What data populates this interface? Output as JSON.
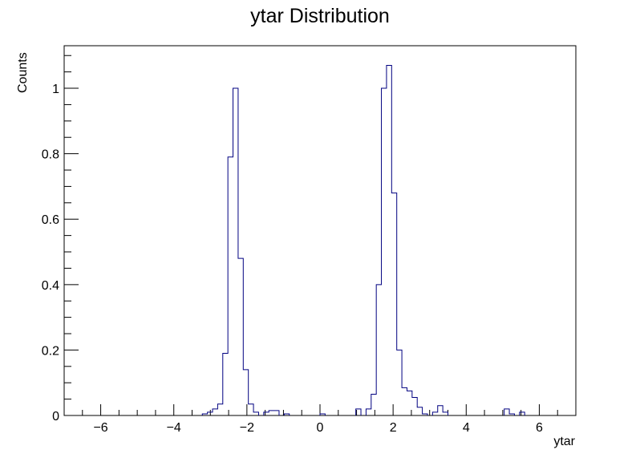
{
  "chart_data": {
    "type": "histogram",
    "title": "ytar Distribution",
    "xlabel": "ytar",
    "ylabel": "Counts",
    "xlim": [
      -7,
      7
    ],
    "ylim": [
      0,
      1.13
    ],
    "grid": false,
    "x_ticks": [
      -6,
      -4,
      -2,
      0,
      2,
      4,
      6
    ],
    "x_tick_labels": [
      "−6",
      "−4",
      "−2",
      "0",
      "2",
      "4",
      "6"
    ],
    "y_ticks": [
      0,
      0.2,
      0.4,
      0.6,
      0.8,
      1
    ],
    "y_tick_labels": [
      "0",
      "0.2",
      "0.4",
      "0.6",
      "0.8",
      "1"
    ],
    "line_color": "#000080",
    "bin_width": 0.14,
    "bins": [
      {
        "x0": -3.22,
        "y": 0.005
      },
      {
        "x0": -3.08,
        "y": 0.01
      },
      {
        "x0": -2.94,
        "y": 0.02
      },
      {
        "x0": -2.8,
        "y": 0.035
      },
      {
        "x0": -2.66,
        "y": 0.19
      },
      {
        "x0": -2.52,
        "y": 0.79
      },
      {
        "x0": -2.38,
        "y": 1.0
      },
      {
        "x0": -2.24,
        "y": 0.48
      },
      {
        "x0": -2.1,
        "y": 0.14
      },
      {
        "x0": -1.96,
        "y": 0.035
      },
      {
        "x0": -1.82,
        "y": 0.01
      },
      {
        "x0": -1.54,
        "y": 0.01
      },
      {
        "x0": -1.4,
        "y": 0.015
      },
      {
        "x0": -1.26,
        "y": 0.015
      },
      {
        "x0": -0.98,
        "y": 0.005
      },
      {
        "x0": 0.0,
        "y": 0.005
      },
      {
        "x0": 0.98,
        "y": 0.02
      },
      {
        "x0": 1.26,
        "y": 0.02
      },
      {
        "x0": 1.4,
        "y": 0.065
      },
      {
        "x0": 1.54,
        "y": 0.4
      },
      {
        "x0": 1.68,
        "y": 1.0
      },
      {
        "x0": 1.82,
        "y": 1.07
      },
      {
        "x0": 1.96,
        "y": 0.68
      },
      {
        "x0": 2.1,
        "y": 0.2
      },
      {
        "x0": 2.24,
        "y": 0.085
      },
      {
        "x0": 2.38,
        "y": 0.075
      },
      {
        "x0": 2.52,
        "y": 0.055
      },
      {
        "x0": 2.66,
        "y": 0.025
      },
      {
        "x0": 2.8,
        "y": 0.005
      },
      {
        "x0": 3.08,
        "y": 0.01
      },
      {
        "x0": 3.22,
        "y": 0.03
      },
      {
        "x0": 3.36,
        "y": 0.01
      },
      {
        "x0": 5.04,
        "y": 0.02
      },
      {
        "x0": 5.18,
        "y": 0.005
      },
      {
        "x0": 5.46,
        "y": 0.01
      }
    ]
  }
}
